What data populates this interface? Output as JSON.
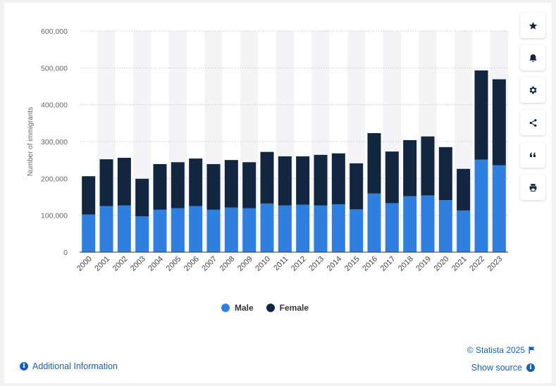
{
  "chart_data": {
    "type": "bar",
    "stacked": true,
    "categories": [
      "2000",
      "2001",
      "2002",
      "2003",
      "2004",
      "2005",
      "2006",
      "2007",
      "2008",
      "2009",
      "2010",
      "2011",
      "2012",
      "2013",
      "2014",
      "2015",
      "2016",
      "2017",
      "2018",
      "2019",
      "2020",
      "2021",
      "2022",
      "2023"
    ],
    "series": [
      {
        "name": "Male",
        "color": "#2f7fe0",
        "values": [
          102000,
          125000,
          127000,
          97000,
          115000,
          119000,
          125000,
          115000,
          121000,
          119000,
          132000,
          127000,
          129000,
          127000,
          130000,
          116000,
          159000,
          133000,
          152000,
          154000,
          141000,
          113000,
          251000,
          236000
        ]
      },
      {
        "name": "Female",
        "color": "#13263f",
        "values": [
          104000,
          127000,
          129000,
          102000,
          124000,
          125000,
          129000,
          124000,
          129000,
          125000,
          140000,
          133000,
          131000,
          137000,
          138000,
          125000,
          164000,
          140000,
          152000,
          160000,
          144000,
          113000,
          242000,
          233000
        ]
      }
    ],
    "ylabel": "Number of immigrants",
    "ylim": [
      0,
      600000
    ],
    "yticks": [
      "0",
      "100,000",
      "200,000",
      "300,000",
      "400,000",
      "500,000",
      "600,000"
    ],
    "grid": true,
    "legend_position": "bottom"
  },
  "legend": {
    "male": "Male",
    "female": "Female"
  },
  "footer": {
    "additional_info": "Additional Information",
    "copyright": "© Statista 2025",
    "show_source": "Show source"
  },
  "toolbar": [
    "star-icon",
    "bell-icon",
    "gear-icon",
    "share-icon",
    "quote-icon",
    "print-icon"
  ]
}
